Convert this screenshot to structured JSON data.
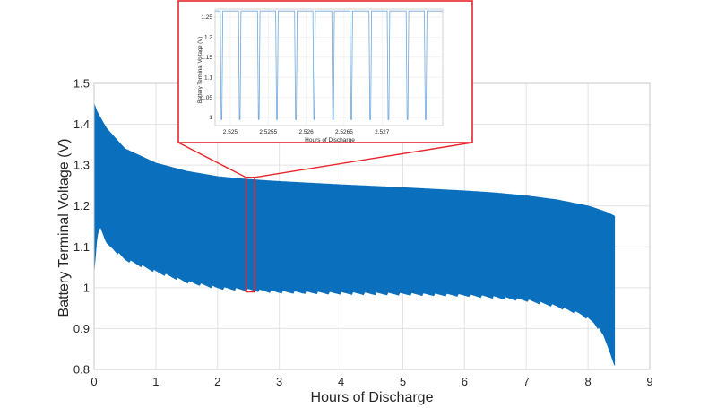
{
  "chart_data": [
    {
      "id": "main",
      "type": "area",
      "xlabel": "Hours of Discharge",
      "ylabel": "Battery Terminal Voltage (V)",
      "xlim": [
        0,
        9
      ],
      "ylim": [
        0.8,
        1.5
      ],
      "xticks": [
        "0",
        "1",
        "2",
        "3",
        "4",
        "5",
        "6",
        "7",
        "8",
        "9"
      ],
      "yticks": [
        "0.8",
        "0.9",
        "1",
        "1.1",
        "1.2",
        "1.3",
        "1.4",
        "1.5"
      ],
      "grid": true,
      "series_color": "#0a6fbd",
      "upper_envelope": {
        "x": [
          0,
          0.05,
          0.2,
          0.5,
          1,
          1.5,
          2,
          2.5,
          3,
          4,
          5,
          6,
          6.5,
          7,
          7.5,
          8,
          8.3,
          8.43
        ],
        "y": [
          1.45,
          1.43,
          1.39,
          1.34,
          1.305,
          1.285,
          1.272,
          1.265,
          1.26,
          1.252,
          1.245,
          1.237,
          1.232,
          1.225,
          1.215,
          1.2,
          1.185,
          1.175
        ]
      },
      "lower_envelope": {
        "x": [
          0,
          0.05,
          0.1,
          0.2,
          0.5,
          1,
          1.5,
          2,
          2.5,
          3,
          4,
          5,
          6,
          6.5,
          7,
          7.5,
          7.9,
          8.1,
          8.25,
          8.35,
          8.43
        ],
        "y": [
          1.04,
          1.13,
          1.15,
          1.11,
          1.07,
          1.04,
          1.015,
          1.0,
          0.995,
          0.99,
          0.987,
          0.985,
          0.982,
          0.977,
          0.97,
          0.955,
          0.935,
          0.915,
          0.885,
          0.845,
          0.81
        ]
      },
      "highlight_region": {
        "x": [
          2.46,
          2.6
        ],
        "y": [
          0.99,
          1.27
        ]
      }
    },
    {
      "id": "inset",
      "type": "line",
      "xlabel": "Hours of Discharge",
      "ylabel": "Battery Terminal Voltage (V)",
      "xlim": [
        2.5248,
        2.5278
      ],
      "ylim": [
        0.98,
        1.27
      ],
      "xticks": [
        "2.525",
        "2.5255",
        "2.526",
        "2.5265",
        "2.527"
      ],
      "yticks": [
        "1",
        "1.05",
        "1.1",
        "1.15",
        "1.2",
        "1.25"
      ],
      "grid": true,
      "series_color": "#6fa8dc",
      "high_level": 1.265,
      "low_level": 0.995,
      "pulse_starts": [
        2.52488,
        2.52537,
        2.52586,
        2.52635,
        2.52684,
        2.52733
      ],
      "pulse_starts_b": [
        2.52512,
        2.52561,
        2.5261,
        2.52659,
        2.52708,
        2.52757
      ],
      "pulse_width": 1e-05
    }
  ],
  "callout_color": "#e8252a"
}
